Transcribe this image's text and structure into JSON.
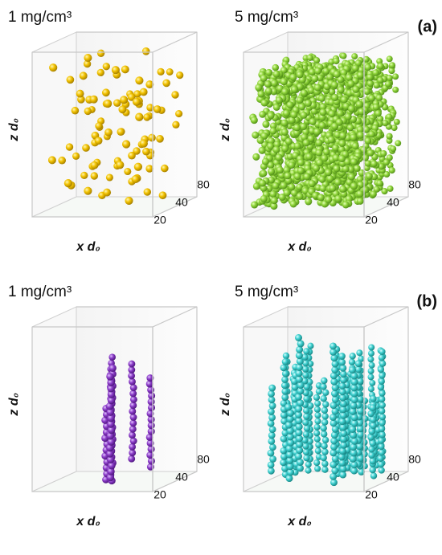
{
  "panels": [
    {
      "label": "(a)",
      "plots": [
        {
          "title": "1 mg/cm³",
          "z_label": "z d₀",
          "x_label": "x d₀",
          "ticks": [
            80,
            40,
            20
          ]
        },
        {
          "title": "5 mg/cm³",
          "z_label": "z d₀",
          "x_label": "x d₀",
          "ticks": [
            80,
            40,
            20
          ]
        }
      ]
    },
    {
      "label": "(b)",
      "plots": [
        {
          "title": "1 mg/cm³",
          "z_label": "z d₀",
          "x_label": "x d₀",
          "ticks": [
            80,
            40,
            20
          ]
        },
        {
          "title": "5 mg/cm³",
          "z_label": "z d₀",
          "x_label": "x d₀",
          "ticks": [
            80,
            40,
            20
          ]
        }
      ]
    }
  ]
}
